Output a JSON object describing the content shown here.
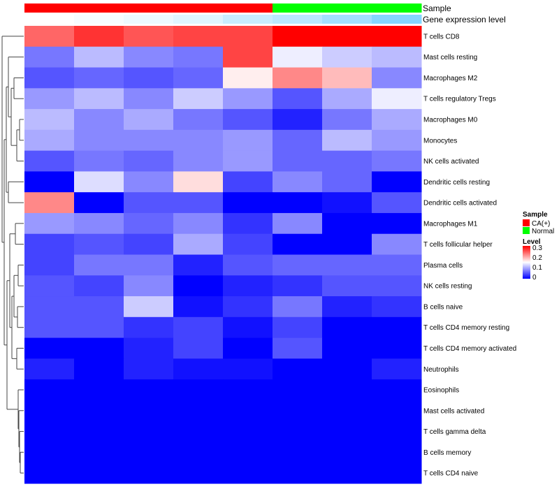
{
  "chart_data": {
    "type": "heatmap",
    "annotation_tracks": [
      {
        "label": "Sample",
        "values": [
          "CA(+)",
          "CA(+)",
          "CA(+)",
          "CA(+)",
          "CA(+)",
          "Normal",
          "Normal",
          "Normal"
        ]
      },
      {
        "label": "Gene expression level",
        "values": [
          0.0,
          0.05,
          0.12,
          0.2,
          0.35,
          0.45,
          0.6,
          0.8
        ]
      }
    ],
    "rows": [
      "T cells CD8",
      "Mast cells resting",
      "Macrophages M2",
      "T cells regulatory  Tregs",
      "Macrophages M0",
      "Monocytes",
      "NK cells activated",
      "Dendritic cells resting",
      "Dendritic cells activated",
      "Macrophages M1",
      "T cells follicular helper",
      "Plasma cells",
      "NK cells resting",
      "B cells naive",
      "T cells CD4 memory resting",
      "T cells CD4 memory activated",
      "Neutrophils",
      "Eosinophils",
      "Mast cells activated",
      "T cells gamma delta",
      "B cells memory",
      "T cells CD4 naive"
    ],
    "values": [
      [
        0.24,
        0.27,
        0.25,
        0.26,
        0.26,
        0.3,
        0.3,
        0.3
      ],
      [
        0.07,
        0.11,
        0.08,
        0.07,
        0.26,
        0.14,
        0.12,
        0.11
      ],
      [
        0.05,
        0.06,
        0.05,
        0.06,
        0.16,
        0.22,
        0.19,
        0.08
      ],
      [
        0.09,
        0.11,
        0.08,
        0.12,
        0.09,
        0.05,
        0.1,
        0.14
      ],
      [
        0.11,
        0.08,
        0.1,
        0.07,
        0.05,
        0.02,
        0.07,
        0.1
      ],
      [
        0.1,
        0.08,
        0.08,
        0.08,
        0.09,
        0.06,
        0.11,
        0.09
      ],
      [
        0.05,
        0.07,
        0.06,
        0.08,
        0.09,
        0.06,
        0.06,
        0.07
      ],
      [
        0.0,
        0.13,
        0.08,
        0.17,
        0.04,
        0.08,
        0.06,
        0.0
      ],
      [
        0.22,
        0.0,
        0.05,
        0.05,
        0.0,
        0.0,
        0.01,
        0.05
      ],
      [
        0.09,
        0.08,
        0.06,
        0.08,
        0.03,
        0.08,
        0.0,
        0.0
      ],
      [
        0.04,
        0.05,
        0.04,
        0.1,
        0.04,
        0.0,
        0.0,
        0.08
      ],
      [
        0.04,
        0.07,
        0.07,
        0.02,
        0.05,
        0.06,
        0.06,
        0.06
      ],
      [
        0.05,
        0.04,
        0.08,
        0.0,
        0.02,
        0.03,
        0.05,
        0.05
      ],
      [
        0.05,
        0.05,
        0.12,
        0.01,
        0.03,
        0.07,
        0.02,
        0.03
      ],
      [
        0.05,
        0.05,
        0.03,
        0.04,
        0.01,
        0.04,
        0.0,
        0.0
      ],
      [
        0.0,
        0.0,
        0.02,
        0.04,
        0.0,
        0.05,
        0.0,
        0.0
      ],
      [
        0.02,
        0.0,
        0.02,
        0.01,
        0.01,
        0.0,
        0.0,
        0.02
      ],
      [
        0.0,
        0.0,
        0.0,
        0.0,
        0.0,
        0.0,
        0.0,
        0.0
      ],
      [
        0.0,
        0.0,
        0.0,
        0.0,
        0.0,
        0.0,
        0.0,
        0.0
      ],
      [
        0.0,
        0.0,
        0.0,
        0.0,
        0.0,
        0.0,
        0.0,
        0.0
      ],
      [
        0.0,
        0.0,
        0.0,
        0.0,
        0.0,
        0.0,
        0.0,
        0.0
      ],
      [
        0.0,
        0.0,
        0.0,
        0.0,
        0.0,
        0.0,
        0.0,
        0.0
      ]
    ],
    "color_scale": {
      "low": "#0000ff",
      "mid": "#ffffff",
      "high": "#ff0000",
      "min": 0,
      "mid_value": 0.15,
      "max": 0.3
    },
    "legends": {
      "sample": {
        "title": "Sample",
        "items": [
          {
            "label": "CA(+)",
            "color": "#ff0000"
          },
          {
            "label": "Normal",
            "color": "#00ff00"
          }
        ]
      },
      "level": {
        "title": "Level",
        "ticks": [
          "0.3",
          "0.2",
          "0.1",
          "0"
        ]
      }
    },
    "dendrogram": "row",
    "legend_position": "right"
  }
}
